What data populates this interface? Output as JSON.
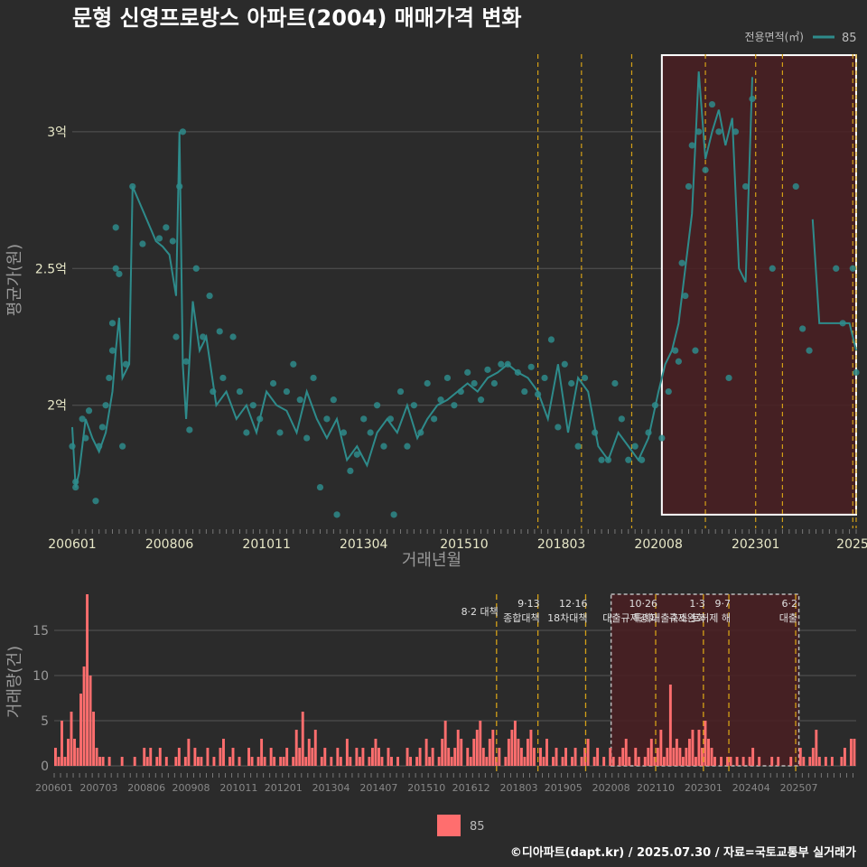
{
  "title": "문형 신영프로방스 아파트(2004) 매매가격 변화",
  "credit": "©디아파트(dapt.kr) / 2025.07.30 / 자료=국토교통부 실거래가",
  "colors": {
    "background": "#2b2b2b",
    "price_line": "#2e8b8b",
    "price_point": "#2e8b8b",
    "volume_bar": "#ff6e6e",
    "highlight_fill": "#4a1f22",
    "policy_line": "#d4a017",
    "grid": "#555555"
  },
  "chart_data": [
    {
      "type": "line",
      "name": "price",
      "xlabel": "거래년월",
      "ylabel": "평균가(원)",
      "x_range": [
        "2006-01",
        "2025-07"
      ],
      "ylim": [
        1.55,
        3.3
      ],
      "y_ticks": [
        {
          "value": 2.0,
          "label": "2억"
        },
        {
          "value": 2.5,
          "label": "2.5억"
        },
        {
          "value": 3.0,
          "label": "3억"
        }
      ],
      "x_ticks": [
        {
          "value": "2006-01",
          "label": "200601"
        },
        {
          "value": "2008-06",
          "label": "200806"
        },
        {
          "value": "2010-11",
          "label": "201011"
        },
        {
          "value": "2013-04",
          "label": "201304"
        },
        {
          "value": "2015-10",
          "label": "201510"
        },
        {
          "value": "2018-03",
          "label": "201803"
        },
        {
          "value": "2020-08",
          "label": "202008"
        },
        {
          "value": "2023-01",
          "label": "202301"
        },
        {
          "value": "2025-07",
          "label": "2025"
        }
      ],
      "legend": {
        "title": "전용면적(㎡)",
        "entries": [
          "85"
        ]
      },
      "highlight_box": {
        "from": "2020-09",
        "to": "2025-07",
        "ymin": 1.6,
        "ymax": 3.28
      },
      "policy_lines": [
        "2017-08",
        "2018-09",
        "2019-12",
        "2021-10",
        "2023-01",
        "2023-09",
        "2025-06",
        "2025-07"
      ],
      "series_line": [
        [
          "2006-01",
          1.92
        ],
        [
          "2006-02",
          1.7
        ],
        [
          "2006-03",
          1.75
        ],
        [
          "2006-05",
          1.95
        ],
        [
          "2006-07",
          1.88
        ],
        [
          "2006-09",
          1.83
        ],
        [
          "2006-11",
          1.9
        ],
        [
          "2007-01",
          2.05
        ],
        [
          "2007-02",
          2.2
        ],
        [
          "2007-03",
          2.32
        ],
        [
          "2007-04",
          2.1
        ],
        [
          "2007-06",
          2.15
        ],
        [
          "2007-07",
          2.8
        ],
        [
          "2008-02",
          2.6
        ],
        [
          "2008-04",
          2.58
        ],
        [
          "2008-06",
          2.55
        ],
        [
          "2008-08",
          2.4
        ],
        [
          "2008-09",
          3.0
        ],
        [
          "2008-10",
          2.15
        ],
        [
          "2008-11",
          1.95
        ],
        [
          "2009-01",
          2.38
        ],
        [
          "2009-03",
          2.2
        ],
        [
          "2009-05",
          2.25
        ],
        [
          "2009-08",
          2.0
        ],
        [
          "2009-11",
          2.05
        ],
        [
          "2010-02",
          1.95
        ],
        [
          "2010-05",
          2.0
        ],
        [
          "2010-08",
          1.9
        ],
        [
          "2010-11",
          2.05
        ],
        [
          "2011-02",
          2.0
        ],
        [
          "2011-05",
          1.98
        ],
        [
          "2011-08",
          1.9
        ],
        [
          "2011-11",
          2.05
        ],
        [
          "2012-02",
          1.95
        ],
        [
          "2012-05",
          1.88
        ],
        [
          "2012-08",
          1.95
        ],
        [
          "2012-11",
          1.8
        ],
        [
          "2013-02",
          1.85
        ],
        [
          "2013-05",
          1.78
        ],
        [
          "2013-08",
          1.9
        ],
        [
          "2013-11",
          1.95
        ],
        [
          "2014-02",
          1.9
        ],
        [
          "2014-05",
          2.0
        ],
        [
          "2014-08",
          1.88
        ],
        [
          "2014-11",
          1.95
        ],
        [
          "2015-02",
          2.0
        ],
        [
          "2015-05",
          2.02
        ],
        [
          "2015-08",
          2.05
        ],
        [
          "2015-11",
          2.08
        ],
        [
          "2016-02",
          2.05
        ],
        [
          "2016-05",
          2.1
        ],
        [
          "2016-08",
          2.12
        ],
        [
          "2016-11",
          2.15
        ],
        [
          "2017-02",
          2.12
        ],
        [
          "2017-05",
          2.1
        ],
        [
          "2017-08",
          2.05
        ],
        [
          "2017-11",
          1.95
        ],
        [
          "2018-02",
          2.15
        ],
        [
          "2018-05",
          1.9
        ],
        [
          "2018-08",
          2.1
        ],
        [
          "2018-11",
          2.05
        ],
        [
          "2019-02",
          1.85
        ],
        [
          "2019-05",
          1.8
        ],
        [
          "2019-08",
          1.9
        ],
        [
          "2019-11",
          1.85
        ],
        [
          "2020-02",
          1.8
        ],
        [
          "2020-05",
          1.88
        ],
        [
          "2020-08",
          2.05
        ],
        [
          "2020-10",
          2.15
        ],
        [
          "2020-12",
          2.2
        ],
        [
          "2021-02",
          2.3
        ],
        [
          "2021-04",
          2.5
        ],
        [
          "2021-06",
          2.7
        ],
        [
          "2021-07",
          2.95
        ],
        [
          "2021-08",
          3.22
        ],
        [
          "2021-10",
          2.9
        ],
        [
          "2021-12",
          3.0
        ],
        [
          "2022-02",
          3.08
        ],
        [
          "2022-04",
          2.95
        ],
        [
          "2022-06",
          3.05
        ],
        [
          "2022-08",
          2.5
        ],
        [
          "2022-10",
          2.45
        ],
        [
          "2022-12",
          3.2
        ],
        [
          "2024-06",
          2.68
        ],
        [
          "2024-08",
          2.3
        ],
        [
          "2025-05",
          2.3
        ],
        [
          "2025-07",
          2.2
        ]
      ],
      "series_points": [
        [
          "2006-01",
          1.85
        ],
        [
          "2006-02",
          1.7
        ],
        [
          "2006-02",
          1.72
        ],
        [
          "2006-04",
          1.95
        ],
        [
          "2006-05",
          1.88
        ],
        [
          "2006-06",
          1.98
        ],
        [
          "2006-08",
          1.65
        ],
        [
          "2006-09",
          1.85
        ],
        [
          "2006-10",
          1.92
        ],
        [
          "2006-11",
          2.0
        ],
        [
          "2006-12",
          2.1
        ],
        [
          "2007-01",
          2.2
        ],
        [
          "2007-01",
          2.3
        ],
        [
          "2007-02",
          2.5
        ],
        [
          "2007-02",
          2.65
        ],
        [
          "2007-03",
          2.48
        ],
        [
          "2007-04",
          1.85
        ],
        [
          "2007-05",
          2.15
        ],
        [
          "2007-07",
          2.8
        ],
        [
          "2007-10",
          2.59
        ],
        [
          "2008-03",
          2.61
        ],
        [
          "2008-05",
          2.65
        ],
        [
          "2008-07",
          2.6
        ],
        [
          "2008-08",
          2.25
        ],
        [
          "2008-09",
          2.8
        ],
        [
          "2008-10",
          3.0
        ],
        [
          "2008-11",
          2.16
        ],
        [
          "2008-12",
          1.91
        ],
        [
          "2009-02",
          2.5
        ],
        [
          "2009-04",
          2.25
        ],
        [
          "2009-06",
          2.4
        ],
        [
          "2009-07",
          2.05
        ],
        [
          "2009-09",
          2.27
        ],
        [
          "2009-10",
          2.1
        ],
        [
          "2010-01",
          2.25
        ],
        [
          "2010-03",
          2.05
        ],
        [
          "2010-05",
          1.9
        ],
        [
          "2010-07",
          2.0
        ],
        [
          "2010-09",
          1.95
        ],
        [
          "2011-01",
          2.08
        ],
        [
          "2011-03",
          1.9
        ],
        [
          "2011-05",
          2.05
        ],
        [
          "2011-07",
          2.15
        ],
        [
          "2011-09",
          2.02
        ],
        [
          "2011-11",
          1.88
        ],
        [
          "2012-01",
          2.1
        ],
        [
          "2012-03",
          1.7
        ],
        [
          "2012-05",
          1.95
        ],
        [
          "2012-07",
          2.02
        ],
        [
          "2012-08",
          1.6
        ],
        [
          "2012-10",
          1.9
        ],
        [
          "2012-12",
          1.76
        ],
        [
          "2013-02",
          1.82
        ],
        [
          "2013-04",
          1.95
        ],
        [
          "2013-06",
          1.9
        ],
        [
          "2013-08",
          2.0
        ],
        [
          "2013-10",
          1.85
        ],
        [
          "2013-12",
          1.95
        ],
        [
          "2014-01",
          1.6
        ],
        [
          "2014-03",
          2.05
        ],
        [
          "2014-05",
          1.85
        ],
        [
          "2014-07",
          2.0
        ],
        [
          "2014-09",
          1.9
        ],
        [
          "2014-11",
          2.08
        ],
        [
          "2015-01",
          1.95
        ],
        [
          "2015-03",
          2.02
        ],
        [
          "2015-05",
          2.1
        ],
        [
          "2015-07",
          2.0
        ],
        [
          "2015-09",
          2.05
        ],
        [
          "2015-11",
          2.12
        ],
        [
          "2016-01",
          2.08
        ],
        [
          "2016-03",
          2.02
        ],
        [
          "2016-05",
          2.13
        ],
        [
          "2016-07",
          2.08
        ],
        [
          "2016-09",
          2.15
        ],
        [
          "2016-11",
          2.15
        ],
        [
          "2017-02",
          2.12
        ],
        [
          "2017-04",
          2.05
        ],
        [
          "2017-06",
          2.14
        ],
        [
          "2017-08",
          2.04
        ],
        [
          "2017-10",
          2.1
        ],
        [
          "2017-12",
          2.24
        ],
        [
          "2018-02",
          1.92
        ],
        [
          "2018-04",
          2.15
        ],
        [
          "2018-06",
          2.08
        ],
        [
          "2018-08",
          1.85
        ],
        [
          "2018-10",
          2.1
        ],
        [
          "2019-01",
          1.9
        ],
        [
          "2019-03",
          1.8
        ],
        [
          "2019-05",
          1.8
        ],
        [
          "2019-07",
          2.08
        ],
        [
          "2019-09",
          1.95
        ],
        [
          "2019-11",
          1.8
        ],
        [
          "2020-01",
          1.85
        ],
        [
          "2020-03",
          1.8
        ],
        [
          "2020-05",
          1.9
        ],
        [
          "2020-07",
          2.0
        ],
        [
          "2020-09",
          1.88
        ],
        [
          "2020-11",
          2.05
        ],
        [
          "2021-01",
          2.2
        ],
        [
          "2021-02",
          2.16
        ],
        [
          "2021-03",
          2.52
        ],
        [
          "2021-04",
          2.4
        ],
        [
          "2021-05",
          2.8
        ],
        [
          "2021-06",
          2.95
        ],
        [
          "2021-07",
          2.2
        ],
        [
          "2021-08",
          3.0
        ],
        [
          "2021-10",
          2.86
        ],
        [
          "2021-12",
          3.1
        ],
        [
          "2022-02",
          3.0
        ],
        [
          "2022-05",
          2.1
        ],
        [
          "2022-07",
          3.0
        ],
        [
          "2022-10",
          2.8
        ],
        [
          "2022-12",
          3.12
        ],
        [
          "2023-06",
          2.5
        ],
        [
          "2024-01",
          2.8
        ],
        [
          "2024-03",
          2.28
        ],
        [
          "2024-05",
          2.2
        ],
        [
          "2025-01",
          2.5
        ],
        [
          "2025-03",
          2.3
        ],
        [
          "2025-06",
          2.5
        ],
        [
          "2025-07",
          2.12
        ]
      ]
    },
    {
      "type": "bar",
      "name": "volume",
      "xlabel": "",
      "ylabel": "거래량(건)",
      "ylim": [
        0,
        19
      ],
      "y_ticks": [
        {
          "value": 0,
          "label": "0"
        },
        {
          "value": 5,
          "label": "5"
        },
        {
          "value": 10,
          "label": "10"
        },
        {
          "value": 15,
          "label": "15"
        }
      ],
      "x_ticks": [
        {
          "value": "2006-01",
          "label": "200601"
        },
        {
          "value": "2007-03",
          "label": "200703"
        },
        {
          "value": "2008-06",
          "label": "200806"
        },
        {
          "value": "2009-08",
          "label": "200908"
        },
        {
          "value": "2010-11",
          "label": "201011"
        },
        {
          "value": "2012-01",
          "label": "201201"
        },
        {
          "value": "2013-04",
          "label": "201304"
        },
        {
          "value": "2014-07",
          "label": "201407"
        },
        {
          "value": "2015-10",
          "label": "201510"
        },
        {
          "value": "2016-12",
          "label": "201612"
        },
        {
          "value": "2018-03",
          "label": "201803"
        },
        {
          "value": "2019-05",
          "label": "201905"
        },
        {
          "value": "2020-08",
          "label": "202008"
        },
        {
          "value": "2021-10",
          "label": "202110"
        },
        {
          "value": "2023-01",
          "label": "202301"
        },
        {
          "value": "2024-04",
          "label": "202404"
        },
        {
          "value": "2025-07",
          "label": "202507"
        }
      ],
      "legend": {
        "entries": [
          "85"
        ]
      },
      "highlight_box": {
        "from": "2020-08",
        "to": "2025-07",
        "ymin": 0,
        "ymax": 19
      },
      "policy_events": [
        {
          "month": "2017-08",
          "date": "8·2",
          "text": "8·2 대책",
          "lines": [
            "8·2 대책"
          ]
        },
        {
          "month": "2018-09",
          "date": "9·13",
          "text": "종합대책",
          "lines": [
            "9·13",
            "종합대책"
          ]
        },
        {
          "month": "2019-12",
          "date": "12·16",
          "text": "18차대책",
          "lines": [
            "12·16",
            "18차대책"
          ]
        },
        {
          "month": "2021-10",
          "date": "10·26",
          "text": "대출규제강화",
          "lines": [
            "10·26",
            "대출규제강화"
          ]
        },
        {
          "month": "2023-01",
          "date": "1·3",
          "text": "규제완화",
          "lines": [
            "1·3",
            "규제완화"
          ]
        },
        {
          "month": "2023-09",
          "date": "9·7",
          "text": "특례대출축소 토허제 해",
          "lines": [
            "9·7",
            "특례대출축소 토허제 해"
          ]
        },
        {
          "month": "2025-06",
          "date": "6·2",
          "text": "대출",
          "lines": [
            "6·2",
            "대출"
          ]
        }
      ],
      "monthly_values": [
        2,
        1,
        5,
        1,
        3,
        6,
        3,
        2,
        8,
        11,
        19,
        10,
        6,
        2,
        1,
        1,
        0,
        1,
        0,
        0,
        0,
        1,
        0,
        0,
        0,
        1,
        0,
        0,
        2,
        1,
        2,
        0,
        1,
        2,
        0,
        1,
        0,
        0,
        1,
        2,
        0,
        1,
        3,
        0,
        2,
        1,
        1,
        0,
        2,
        0,
        1,
        0,
        2,
        3,
        0,
        1,
        2,
        0,
        1,
        0,
        0,
        2,
        1,
        0,
        1,
        3,
        1,
        0,
        2,
        1,
        0,
        1,
        1,
        2,
        0,
        1,
        4,
        2,
        6,
        1,
        3,
        2,
        4,
        0,
        1,
        2,
        0,
        1,
        0,
        2,
        1,
        0,
        3,
        1,
        0,
        2,
        1,
        2,
        0,
        1,
        2,
        3,
        2,
        1,
        0,
        2,
        1,
        0,
        1,
        0,
        0,
        2,
        1,
        0,
        1,
        2,
        0,
        3,
        1,
        2,
        0,
        1,
        3,
        5,
        2,
        1,
        2,
        4,
        3,
        0,
        2,
        1,
        3,
        4,
        5,
        2,
        1,
        3,
        4,
        1,
        2,
        0,
        1,
        3,
        4,
        5,
        3,
        2,
        1,
        3,
        4,
        2,
        0,
        2,
        1,
        3,
        0,
        1,
        2,
        0,
        1,
        2,
        0,
        1,
        2,
        0,
        1,
        2,
        3,
        0,
        1,
        2,
        0,
        1,
        0,
        2,
        1,
        0,
        1,
        2,
        3,
        1,
        0,
        2,
        1,
        0,
        1,
        2,
        3,
        1,
        2,
        4,
        1,
        2,
        9,
        2,
        3,
        2,
        1,
        2,
        3,
        4,
        1,
        4,
        2,
        5,
        3,
        2,
        1,
        0,
        1,
        0,
        1,
        1,
        0,
        1,
        0,
        1,
        0,
        1,
        2,
        0,
        1,
        0,
        0,
        0,
        1,
        0,
        1,
        0,
        0,
        0,
        1,
        0,
        0,
        2,
        1,
        0,
        1,
        2,
        4,
        1,
        0,
        1,
        0,
        1,
        0,
        0,
        1,
        2,
        0,
        3,
        3
      ]
    }
  ]
}
